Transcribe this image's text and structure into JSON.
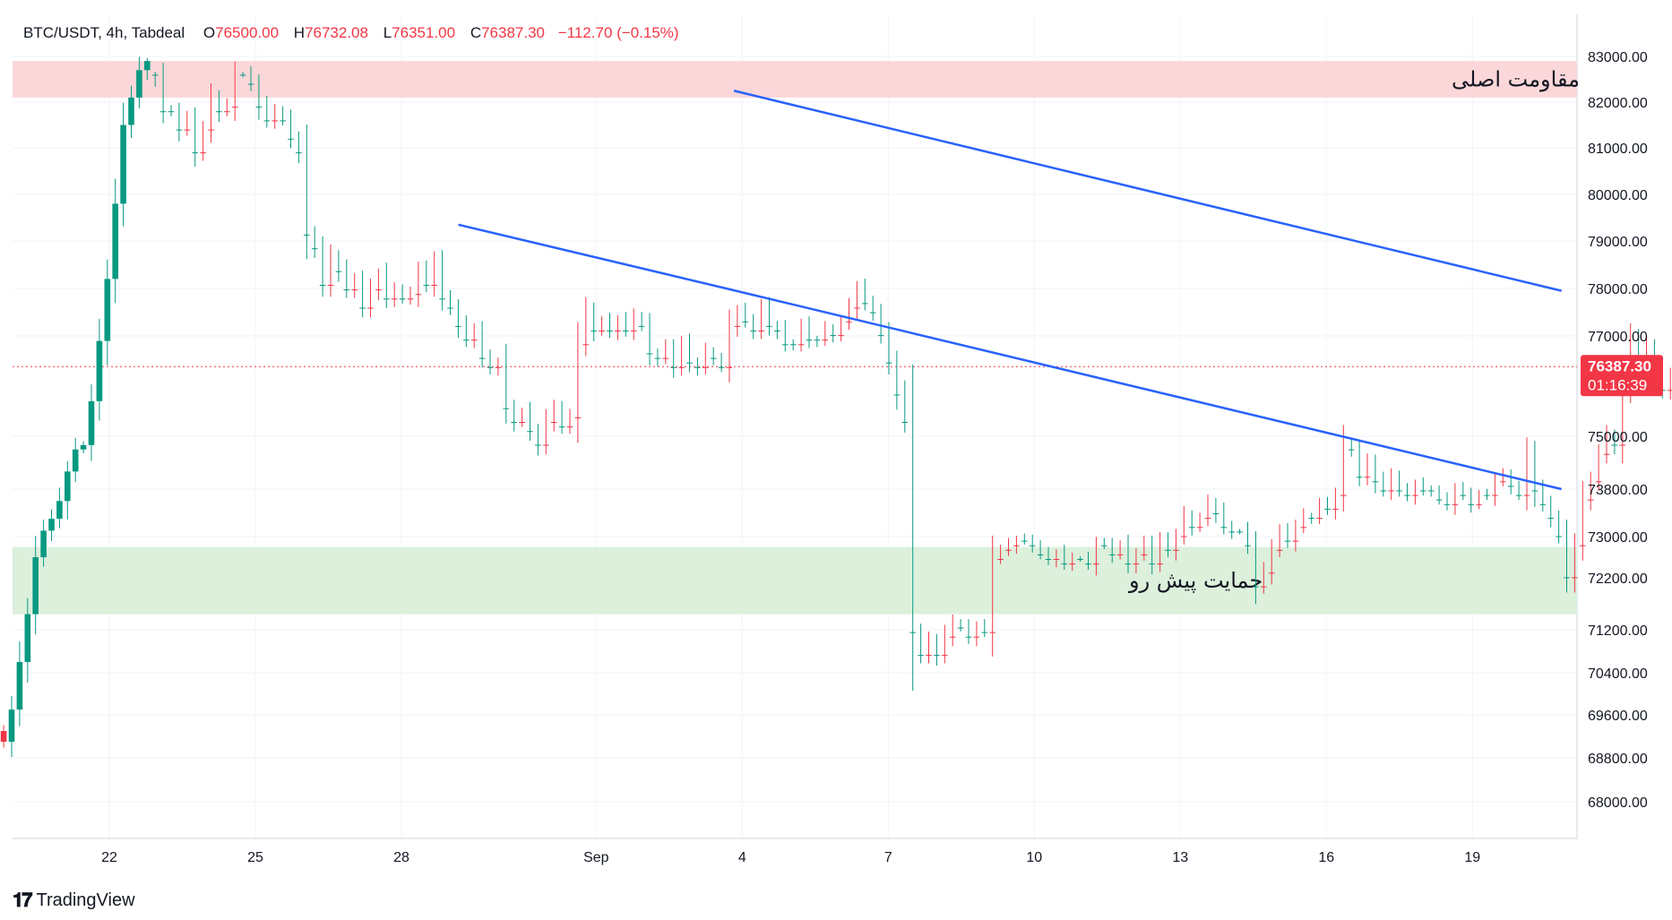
{
  "header": {
    "symbol": "BTC/USDT, 4h, Tabdeal",
    "open_label": "O",
    "open": "76500.00",
    "high_label": "H",
    "high": "76732.08",
    "low_label": "L",
    "low": "76351.00",
    "close_label": "C",
    "close": "76387.30",
    "change": "−112.70 (−0.15%)"
  },
  "branding": {
    "name": "TradingView",
    "icon": "tradingview-logo-icon"
  },
  "price_badge": {
    "price": "76387.30",
    "countdown": "01:16:39"
  },
  "colors": {
    "up": "#089981",
    "down": "#f23645",
    "trendline": "#2962ff",
    "resistance_zone": "#fcd7d9",
    "support_zone": "#dcf0dc",
    "grid": "#f0f3fa"
  },
  "chart_data": {
    "type": "candlestick",
    "symbol": "BTC/USDT",
    "timeframe": "4h",
    "y_ticks": [
      83000,
      82000,
      81000,
      80000,
      79000,
      78000,
      77000,
      75000,
      73800,
      73000,
      72200,
      71200,
      70400,
      69600,
      68800,
      68000
    ],
    "y_tick_labels": [
      "83000.00",
      "82000.00",
      "81000.00",
      "80000.00",
      "79000.00",
      "78000.00",
      "77000.00",
      "75000.00",
      "73800.00",
      "73000.00",
      "72200.00",
      "71200.00",
      "70400.00",
      "69600.00",
      "68800.00",
      "68000.00"
    ],
    "x_ticks": [
      {
        "label": "22",
        "day": 22
      },
      {
        "label": "25",
        "day": 25
      },
      {
        "label": "28",
        "day": 28
      },
      {
        "label": "Sep",
        "day": 32
      },
      {
        "label": "4",
        "day": 35
      },
      {
        "label": "7",
        "day": 38
      },
      {
        "label": "10",
        "day": 41
      },
      {
        "label": "13",
        "day": 44
      },
      {
        "label": "16",
        "day": 47
      },
      {
        "label": "19",
        "day": 50
      }
    ],
    "zones": [
      {
        "name": "resistance",
        "label": "مقاومت اصلی",
        "from": 82100,
        "to": 82900
      },
      {
        "name": "support",
        "label": "حمایت پیش رو",
        "from": 71500,
        "to": 72800
      }
    ],
    "trendlines": [
      {
        "name": "channel-upper",
        "from": {
          "day": 34.83,
          "price": 82250
        },
        "to": {
          "day": 51.83,
          "price": 77950
        }
      },
      {
        "name": "channel-lower-1",
        "from": {
          "day": 29.17,
          "price": 79350
        },
        "to": {
          "day": 34.67,
          "price": 78000
        }
      },
      {
        "name": "channel-lower-2",
        "from": {
          "day": 34.67,
          "price": 78000
        },
        "to": {
          "day": 51.83,
          "price": 73800
        }
      }
    ],
    "start_price": 69300,
    "current_price": 76387.3,
    "x_start_day": 19.83,
    "moves": [
      -200,
      600,
      900,
      900,
      1100,
      500,
      200,
      300,
      600,
      500,
      100,
      900,
      1200,
      1300,
      1600,
      1700,
      600,
      600,
      200,
      500,
      800,
      0,
      400,
      -200,
      700,
      -500,
      -700,
      300,
      -100,
      -700,
      0,
      200,
      500,
      300,
      -200,
      200,
      400,
      300,
      1800,
      300,
      800,
      -600,
      300,
      400,
      -200,
      600,
      -400,
      -300,
      500,
      -200,
      200,
      -100,
      -500,
      300,
      -500,
      800,
      200,
      400,
      300,
      -200,
      600,
      200,
      -100,
      1000,
      300,
      -200,
      400,
      300,
      -500,
      -300,
      400,
      -200,
      -1600,
      -700,
      400,
      -200,
      200,
      -200,
      200,
      -300,
      200,
      600,
      100,
      -200,
      400,
      -500,
      400,
      100,
      -300,
      100,
      200,
      -900,
      -300,
      200,
      200,
      -500,
      400,
      100,
      300,
      0,
      -400,
      300,
      0,
      -200,
      100,
      -300,
      -300,
      -400,
      300,
      200,
      500,
      600,
      700,
      600,
      4600,
      500,
      -300,
      300,
      -400,
      -300,
      100,
      200,
      -200,
      100,
      -1600,
      -200,
      -100,
      -100,
      0,
      100,
      200,
      100,
      -100,
      200,
      -100,
      0,
      100,
      -400,
      0,
      200,
      -200,
      400,
      -200,
      -200,
      400,
      -500,
      200,
      -300,
      -400,
      200,
      -200,
      -300,
      200,
      300,
      100,
      0,
      300,
      900,
      -300,
      -500,
      -400,
      200,
      -300,
      -200,
      0,
      -300,
      100,
      -300,
      -1100,
      100,
      600,
      -300,
      400,
      200,
      -300,
      300,
      100,
      -200,
      100,
      0,
      200,
      100,
      -300,
      100,
      200,
      -200,
      0,
      -300,
      -100,
      200,
      200,
      -900,
      800,
      300,
      300,
      400,
      900,
      -700,
      -1000,
      -400,
      -600,
      -400,
      200,
      -1300,
      -1000,
      700,
      -500,
      500,
      400,
      -300,
      200,
      200,
      -200
    ]
  }
}
